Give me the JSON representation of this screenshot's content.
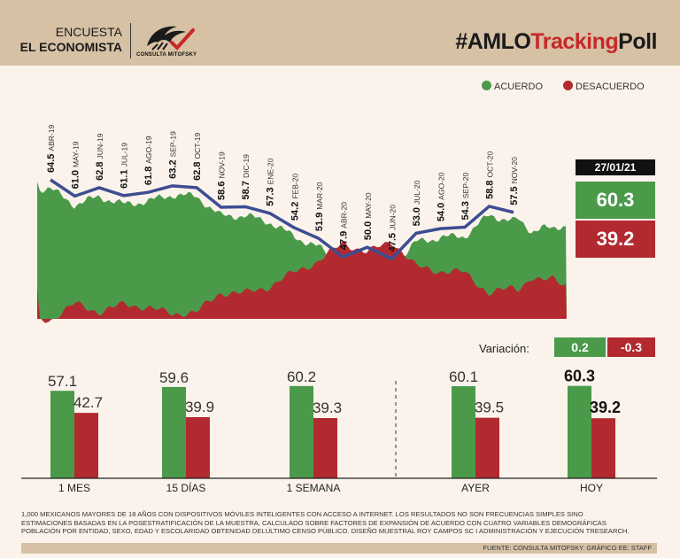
{
  "header": {
    "line1": "ENCUESTA",
    "line2": "EL ECONOMISTA",
    "logo_text": "CONSULTA MITOFSKY",
    "hashtag_prefix": "#AMLO",
    "hashtag_mid": "Tracking",
    "hashtag_suffix": "Poll"
  },
  "legend": {
    "acuerdo": "ACUERDO",
    "desacuerdo": "DESACUERDO"
  },
  "colors": {
    "green": "#4a9a4a",
    "red": "#b22a2f",
    "line": "#3d4d92",
    "header": "#d6c1a5"
  },
  "current": {
    "date": "27/01/21",
    "acuerdo": "60.3",
    "desacuerdo": "39.2"
  },
  "variation": {
    "label": "Variación:",
    "acuerdo": "0.2",
    "desacuerdo": "-0.3"
  },
  "chart_data": [
    {
      "type": "line",
      "series_name": "ACUERDO",
      "points": [
        {
          "value": 64.5,
          "label": "64.5",
          "month": "ABR-19"
        },
        {
          "value": 61.0,
          "label": "61.0",
          "month": "MAY-19"
        },
        {
          "value": 62.8,
          "label": "62.8",
          "month": "JUN-19"
        },
        {
          "value": 61.1,
          "label": "61.1",
          "month": "JUL-19"
        },
        {
          "value": 61.8,
          "label": "61.8",
          "month": "AGO-19"
        },
        {
          "value": 63.2,
          "label": "63.2",
          "month": "SEP-19"
        },
        {
          "value": 62.8,
          "label": "62.8",
          "month": "OCT-19"
        },
        {
          "value": 58.6,
          "label": "58.6",
          "month": "NOV-19"
        },
        {
          "value": 58.7,
          "label": "58.7",
          "month": "DIC-19"
        },
        {
          "value": 57.3,
          "label": "57.3",
          "month": "ENE-20"
        },
        {
          "value": 54.2,
          "label": "54.2",
          "month": "FEB-20"
        },
        {
          "value": 51.9,
          "label": "51.9",
          "month": "MAR-20"
        },
        {
          "value": 47.9,
          "label": "47.9",
          "month": "ABR-20"
        },
        {
          "value": 50.0,
          "label": "50.0",
          "month": "MAY-20"
        },
        {
          "value": 47.5,
          "label": "47.5",
          "month": "JUN-20"
        },
        {
          "value": 53.0,
          "label": "53.0",
          "month": "JUL-20"
        },
        {
          "value": 54.0,
          "label": "54.0",
          "month": "AGO-20"
        },
        {
          "value": 54.3,
          "label": "54.3",
          "month": "SEP-20"
        },
        {
          "value": 58.8,
          "label": "58.8",
          "month": "OCT-20"
        },
        {
          "value": 57.5,
          "label": "57.5",
          "month": "NOV-20"
        }
      ]
    },
    {
      "type": "bar",
      "categories": [
        "1 MES",
        "15 DÍAS",
        "1 SEMANA",
        "AYER",
        "HOY"
      ],
      "series": [
        {
          "name": "ACUERDO",
          "values": [
            57.1,
            59.6,
            60.2,
            60.1,
            60.3
          ],
          "labels": [
            "57.1",
            "59.6",
            "60.2",
            "60.1",
            "60.3"
          ]
        },
        {
          "name": "DESACUERDO",
          "values": [
            42.7,
            39.9,
            39.3,
            39.5,
            39.2
          ],
          "labels": [
            "42.7",
            "39.9",
            "39.3",
            "39.5",
            "39.2"
          ]
        }
      ],
      "ylim": [
        0,
        70
      ]
    }
  ],
  "footer": {
    "text": "1,000 MEXICANOS MAYORES DE 18 AÑOS CON DISPOSITIVOS MÓVILES INTELIGENTES CON ACCESO A INTERNET. LOS RESULTADOS NO SON FRECUENCIAS SIMPLES SINO ESTIMACIONES BASADAS EN LA POSESTRATIFICACIÓN DE LA MUESTRA, CALCULADO SOBRE FACTORES DE EXPANSIÓN DE ACUERDO CON CUATRO VARIABLES DEMOGRÁFICAS POBLACIÓN POR ENTIDAD, SEXO, EDAD Y ESCOLARIDAD OBTENIDAD DELÚLTIMO CENSO PÚBLICO. DISEÑO MUESTRAL ROY CAMPOS SC I ADMINISTRACIÓN Y EJECUCIÓN TRESEARCH.",
    "source": "FUENTE: CONSULTA MITOFSKY. GRÁFICO EE: STAFF"
  }
}
